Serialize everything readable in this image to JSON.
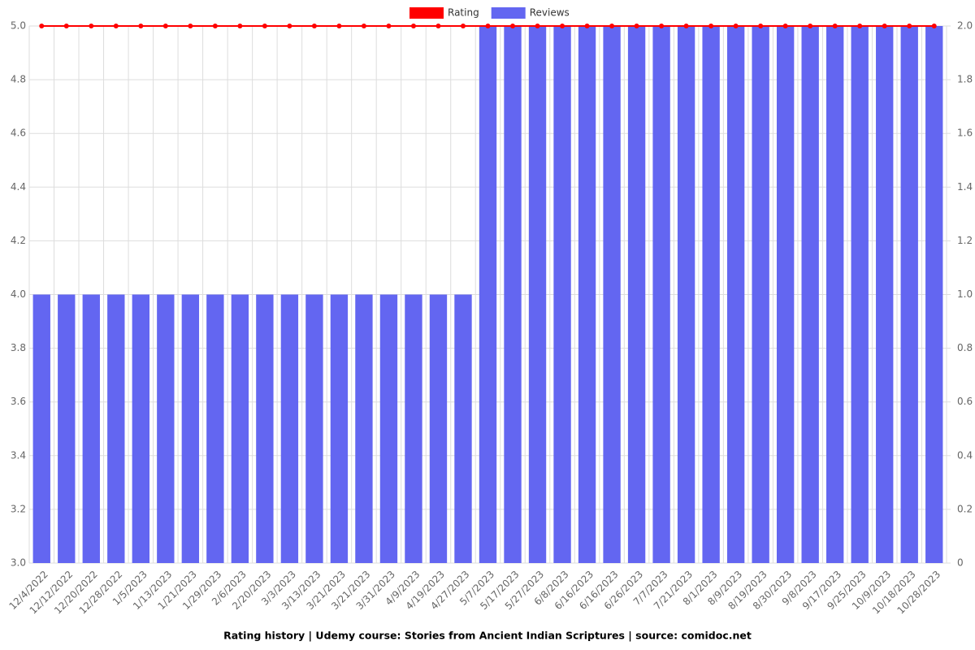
{
  "chart_data": {
    "type": "bar_line",
    "title": "Rating history | Udemy course: Stories from Ancient Indian Scriptures | source: comidoc.net",
    "categories": [
      "12/4/2022",
      "12/12/2022",
      "12/20/2022",
      "12/28/2022",
      "1/5/2023",
      "1/13/2023",
      "1/21/2023",
      "1/29/2023",
      "2/6/2023",
      "2/20/2023",
      "3/3/2023",
      "3/13/2023",
      "3/21/2023",
      "3/21/2023",
      "3/31/2023",
      "4/9/2023",
      "4/19/2023",
      "4/27/2023",
      "5/7/2023",
      "5/17/2023",
      "5/27/2023",
      "6/8/2023",
      "6/16/2023",
      "6/16/2023",
      "6/26/2023",
      "7/7/2023",
      "7/21/2023",
      "8/1/2023",
      "8/9/2023",
      "8/19/2023",
      "8/30/2023",
      "9/8/2023",
      "9/17/2023",
      "9/25/2023",
      "10/9/2023",
      "10/18/2023",
      "10/28/2023"
    ],
    "series": [
      {
        "name": "Rating",
        "type": "line",
        "color": "#ff0000",
        "values": [
          5,
          5,
          5,
          5,
          5,
          5,
          5,
          5,
          5,
          5,
          5,
          5,
          5,
          5,
          5,
          5,
          5,
          5,
          5,
          5,
          5,
          5,
          5,
          5,
          5,
          5,
          5,
          5,
          5,
          5,
          5,
          5,
          5,
          5,
          5,
          5,
          5
        ]
      },
      {
        "name": "Reviews",
        "type": "bar",
        "axis": "y2",
        "color": "#6366f1",
        "values": [
          1,
          1,
          1,
          1,
          1,
          1,
          1,
          1,
          1,
          1,
          1,
          1,
          1,
          1,
          1,
          1,
          1,
          1,
          2,
          2,
          2,
          2,
          2,
          2,
          2,
          2,
          2,
          2,
          2,
          2,
          2,
          2,
          2,
          2,
          2,
          2,
          2
        ]
      }
    ],
    "ylim": [
      3,
      5
    ],
    "yticks": [
      {
        "value": 3,
        "label": "3.0"
      },
      3.2,
      3.4,
      3.6,
      3.8,
      {
        "value": 4,
        "label": "4.0"
      },
      4.2,
      4.4,
      4.6,
      4.8,
      {
        "value": 5,
        "label": "5.0"
      }
    ],
    "y2lim": [
      0,
      2
    ],
    "y2ticks": [
      0,
      0.2,
      0.4,
      0.6,
      0.8,
      {
        "value": 1,
        "label": "1.0"
      },
      1.2,
      1.4,
      1.6,
      1.8,
      {
        "value": 2,
        "label": "2.0"
      }
    ],
    "grid": true
  }
}
